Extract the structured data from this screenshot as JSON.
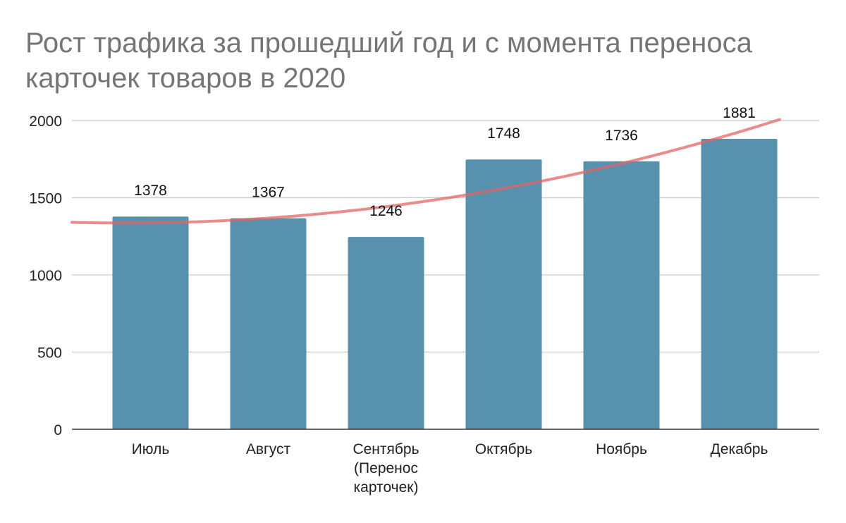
{
  "chart_data": {
    "type": "bar",
    "title": "Рост трафика за прошедший год и с момента переноса карточек товаров в 2020",
    "xlabel": "",
    "ylabel": "",
    "categories": [
      "Июль",
      "Август",
      "Сентябрь (Перенос карточек)",
      "Октябрь",
      "Ноябрь",
      "Декабрь"
    ],
    "category_lines": [
      [
        "Июль"
      ],
      [
        "Август"
      ],
      [
        "Сентябрь",
        "(Перенос",
        "карточек)"
      ],
      [
        "Октябрь"
      ],
      [
        "Ноябрь"
      ],
      [
        "Декабрь"
      ]
    ],
    "values": [
      1378,
      1367,
      1246,
      1748,
      1736,
      1881
    ],
    "data_labels": [
      "1378",
      "1367",
      "1246",
      "1748",
      "1736",
      "1881"
    ],
    "ylim": [
      0,
      2000
    ],
    "yticks": [
      0,
      500,
      1000,
      1500,
      2000
    ],
    "ytick_labels": [
      "0",
      "500",
      "1000",
      "1500",
      "2000"
    ],
    "grid": true,
    "legend": "none",
    "trendline": {
      "type": "polynomial",
      "degree": 2
    },
    "colors": {
      "bar": "#5891ae",
      "trendline": "#e06666",
      "grid": "#cccccc",
      "axis": "#333333",
      "title": "#757575"
    }
  }
}
